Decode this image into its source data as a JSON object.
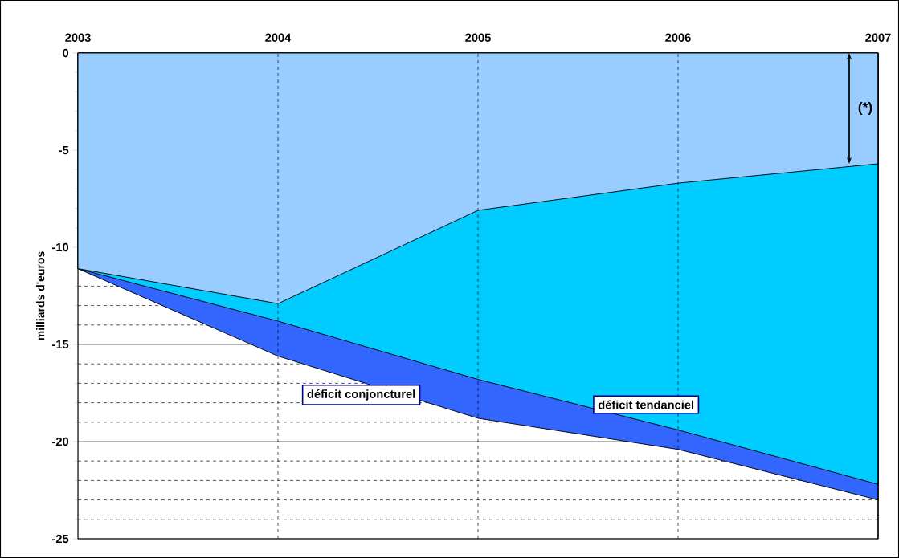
{
  "chart_data": {
    "type": "area",
    "ylabel": "milliards d'euros",
    "x": [
      2003,
      2004,
      2005,
      2006,
      2007
    ],
    "xlim": [
      2003,
      2007
    ],
    "xticks": [
      2003,
      2004,
      2005,
      2006,
      2007
    ],
    "ylim": [
      -25,
      0
    ],
    "yticks": [
      -25,
      -20,
      -15,
      -10,
      -5,
      0
    ],
    "grid": true,
    "legend": false,
    "annotations": [
      "(*)"
    ],
    "series": [
      {
        "color": "#99ccff",
        "values": [
          -11.1,
          -12.9,
          -8.1,
          -6.7,
          -5.7
        ]
      },
      {
        "name": "déficit tendanciel",
        "color": "#00ccff",
        "values": [
          -11.1,
          -13.8,
          -16.8,
          -19.4,
          -22.2
        ]
      },
      {
        "name": "déficit conjoncturel",
        "color": "#3366ff",
        "values": [
          -11.1,
          -15.6,
          -18.8,
          -20.4,
          -23.0
        ]
      }
    ]
  }
}
